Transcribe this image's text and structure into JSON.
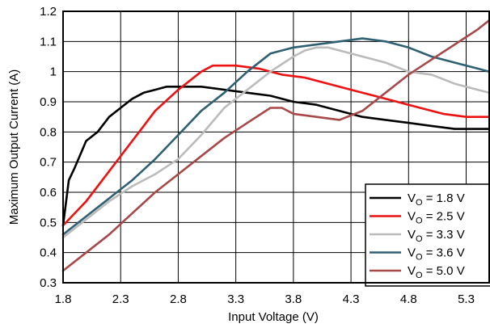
{
  "chart_data": {
    "type": "line",
    "title": "",
    "xlabel": "Input Voltage (V)",
    "ylabel": "Maximum Output Current (A)",
    "xlim": [
      1.8,
      5.5
    ],
    "ylim": [
      0.3,
      1.2
    ],
    "xticks": [
      "1.8",
      "2.3",
      "2.8",
      "3.3",
      "3.8",
      "4.3",
      "4.8",
      "5.3"
    ],
    "yticks": [
      "0.3",
      "0.4",
      "0.5",
      "0.6",
      "0.7",
      "0.8",
      "0.9",
      "1",
      "1.1",
      "1.2"
    ],
    "grid": true,
    "legend_position": "bottom-right",
    "series": [
      {
        "name": "V_O = 1.8 V",
        "legend": {
          "prefix": "V",
          "sub": "O",
          "suffix": " = 1.8 V"
        },
        "color": "#000000",
        "x": [
          1.8,
          1.85,
          1.9,
          2.0,
          2.1,
          2.2,
          2.3,
          2.4,
          2.5,
          2.6,
          2.7,
          2.8,
          2.9,
          3.0,
          3.2,
          3.4,
          3.6,
          3.8,
          4.0,
          4.2,
          4.4,
          4.6,
          4.8,
          5.0,
          5.2,
          5.4,
          5.5
        ],
        "y": [
          0.49,
          0.64,
          0.68,
          0.77,
          0.8,
          0.85,
          0.88,
          0.91,
          0.93,
          0.94,
          0.95,
          0.95,
          0.95,
          0.95,
          0.94,
          0.93,
          0.92,
          0.9,
          0.89,
          0.87,
          0.85,
          0.84,
          0.83,
          0.82,
          0.81,
          0.81,
          0.81
        ]
      },
      {
        "name": "V_O = 2.5 V",
        "legend": {
          "prefix": "V",
          "sub": "O",
          "suffix": " = 2.5 V"
        },
        "color": "#ee1111",
        "x": [
          1.8,
          2.0,
          2.2,
          2.4,
          2.5,
          2.6,
          2.8,
          3.0,
          3.1,
          3.3,
          3.5,
          3.7,
          3.9,
          4.1,
          4.3,
          4.5,
          4.7,
          4.9,
          5.1,
          5.3,
          5.5
        ],
        "y": [
          0.49,
          0.57,
          0.67,
          0.77,
          0.82,
          0.87,
          0.94,
          1.0,
          1.02,
          1.02,
          1.01,
          0.99,
          0.98,
          0.96,
          0.94,
          0.92,
          0.9,
          0.88,
          0.86,
          0.85,
          0.85
        ]
      },
      {
        "name": "V_O = 3.3 V",
        "legend": {
          "prefix": "V",
          "sub": "O",
          "suffix": " = 3.3 V"
        },
        "color": "#bbbbbb",
        "x": [
          1.8,
          2.0,
          2.2,
          2.4,
          2.6,
          2.8,
          3.0,
          3.2,
          3.4,
          3.6,
          3.8,
          3.9,
          4.0,
          4.1,
          4.2,
          4.4,
          4.6,
          4.8,
          5.0,
          5.2,
          5.4,
          5.5
        ],
        "y": [
          0.45,
          0.51,
          0.57,
          0.62,
          0.66,
          0.71,
          0.79,
          0.88,
          0.94,
          1.0,
          1.05,
          1.07,
          1.08,
          1.08,
          1.07,
          1.05,
          1.03,
          1.0,
          0.99,
          0.96,
          0.94,
          0.93
        ]
      },
      {
        "name": "V_O = 3.6 V",
        "legend": {
          "prefix": "V",
          "sub": "O",
          "suffix": " = 3.6 V"
        },
        "color": "#2f6072",
        "x": [
          1.8,
          2.0,
          2.2,
          2.4,
          2.6,
          2.8,
          3.0,
          3.2,
          3.4,
          3.6,
          3.8,
          4.0,
          4.2,
          4.4,
          4.6,
          4.8,
          5.0,
          5.2,
          5.4,
          5.5
        ],
        "y": [
          0.46,
          0.52,
          0.58,
          0.64,
          0.71,
          0.79,
          0.87,
          0.93,
          1.0,
          1.06,
          1.08,
          1.09,
          1.1,
          1.11,
          1.1,
          1.08,
          1.05,
          1.03,
          1.01,
          1.0
        ]
      },
      {
        "name": "V_O = 5.0 V",
        "legend": {
          "prefix": "V",
          "sub": "O",
          "suffix": " = 5.0 V"
        },
        "color": "#a84848",
        "x": [
          1.8,
          2.0,
          2.2,
          2.4,
          2.6,
          2.8,
          3.0,
          3.2,
          3.4,
          3.6,
          3.7,
          3.8,
          4.0,
          4.2,
          4.4,
          4.6,
          4.8,
          5.0,
          5.2,
          5.4,
          5.5
        ],
        "y": [
          0.34,
          0.4,
          0.46,
          0.53,
          0.6,
          0.66,
          0.72,
          0.78,
          0.83,
          0.88,
          0.88,
          0.86,
          0.85,
          0.84,
          0.87,
          0.93,
          0.99,
          1.04,
          1.09,
          1.14,
          1.17
        ]
      }
    ]
  }
}
